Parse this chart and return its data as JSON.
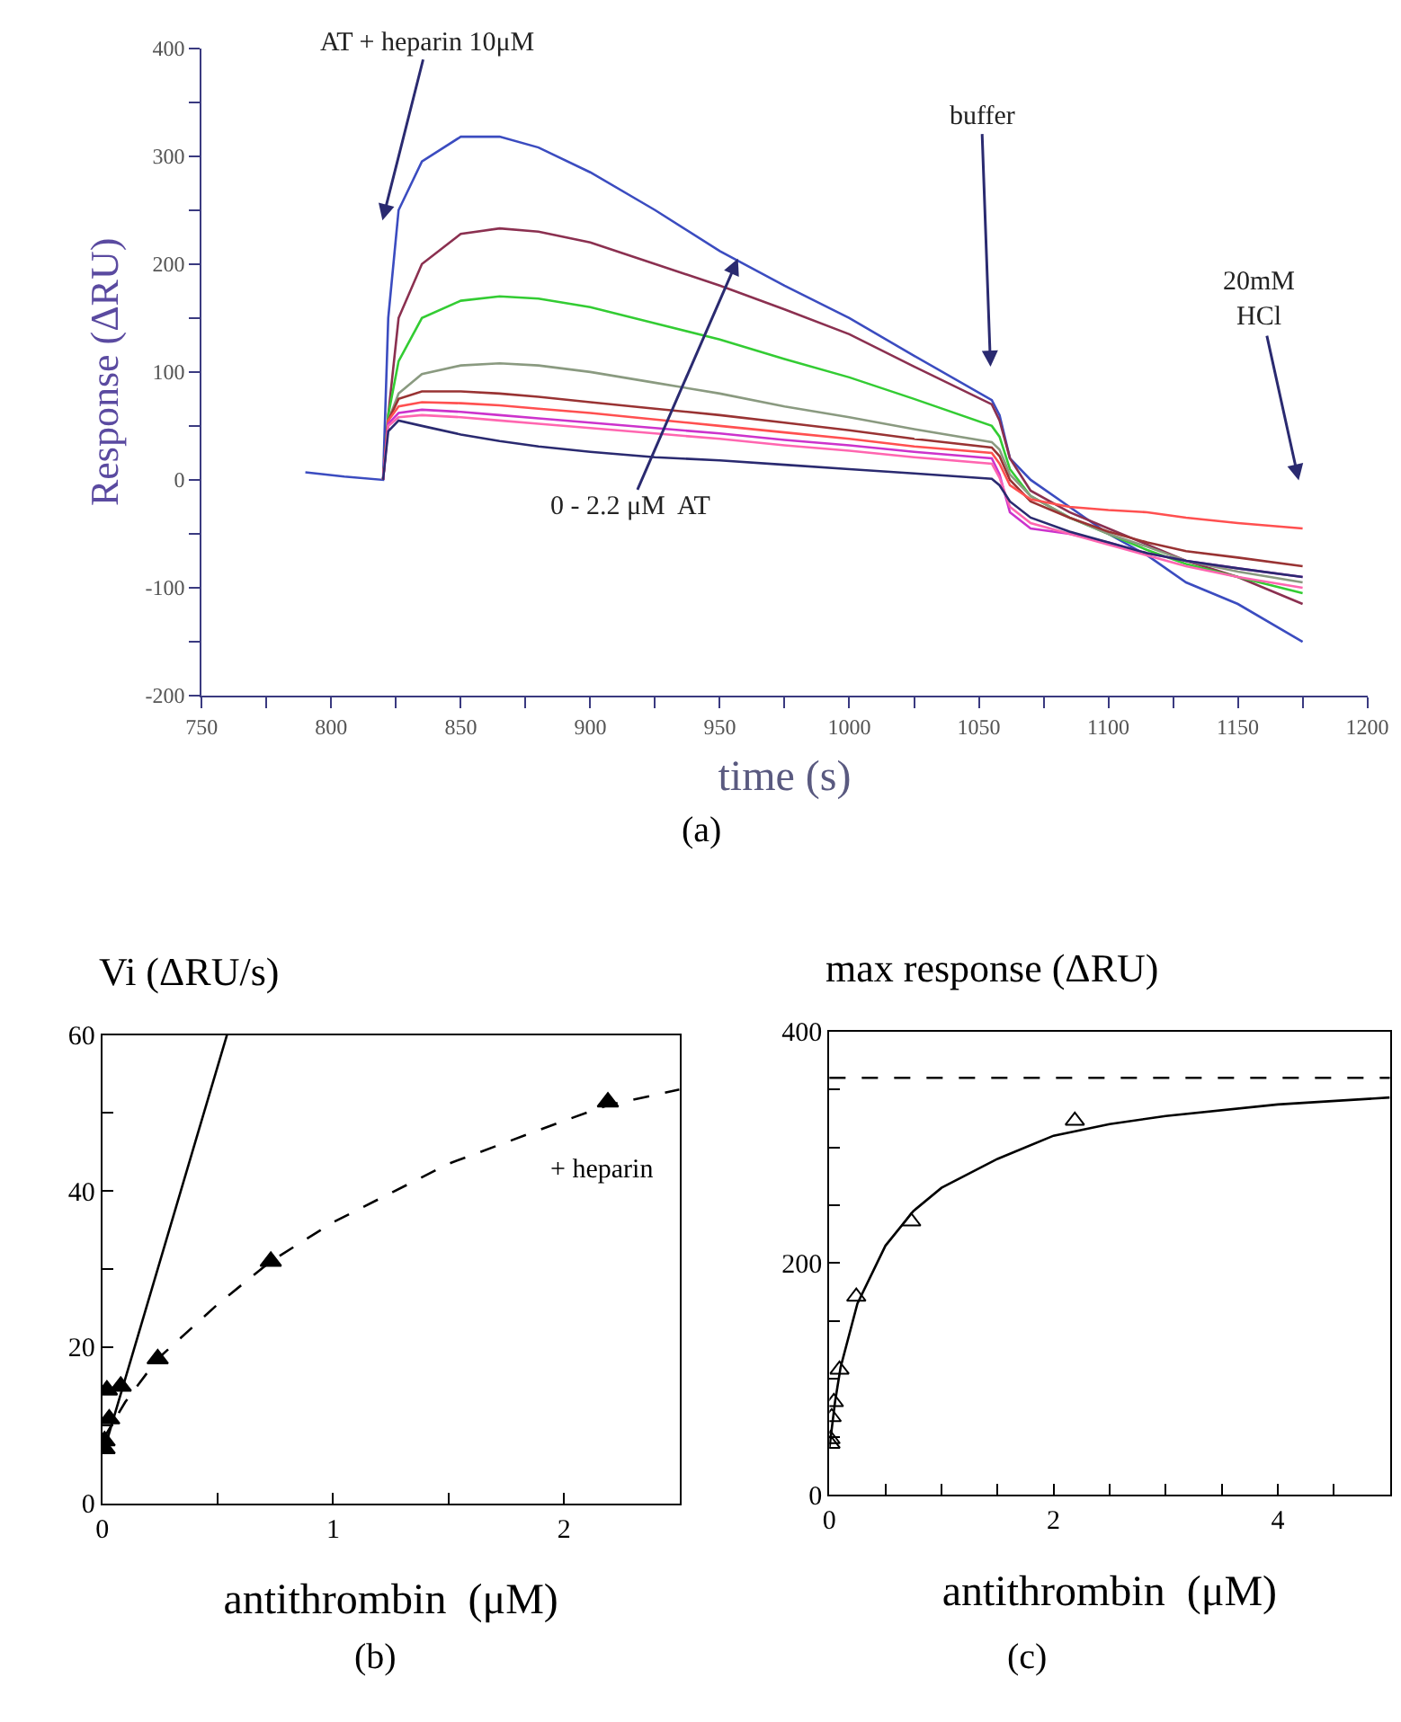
{
  "chart_data": [
    {
      "type": "line",
      "xlabel": "time (s)",
      "ylabel": "Response (ΔRU)",
      "x": [
        790,
        805,
        820,
        822,
        826,
        835,
        850,
        865,
        880,
        900,
        925,
        950,
        975,
        1000,
        1025,
        1055,
        1058,
        1062,
        1070,
        1085,
        1100,
        1115,
        1130,
        1150,
        1175
      ],
      "series": [
        {
          "color": "#3b4cc0",
          "values": [
            7,
            3,
            0,
            150,
            250,
            295,
            318,
            318,
            308,
            285,
            250,
            212,
            180,
            150,
            115,
            74,
            60,
            20,
            0,
            -25,
            -50,
            -70,
            -95,
            -115,
            -150
          ]
        },
        {
          "color": "#8b3050",
          "values": [
            null,
            null,
            0,
            60,
            150,
            200,
            228,
            233,
            230,
            220,
            200,
            180,
            158,
            135,
            105,
            70,
            55,
            20,
            -10,
            -30,
            -45,
            -60,
            -75,
            -90,
            -115
          ]
        },
        {
          "color": "#33cc33",
          "values": [
            null,
            null,
            0,
            60,
            110,
            150,
            166,
            170,
            168,
            160,
            145,
            130,
            112,
            95,
            75,
            50,
            40,
            10,
            -15,
            -35,
            -50,
            -65,
            -78,
            -90,
            -105
          ]
        },
        {
          "color": "#8a9a80",
          "values": [
            null,
            null,
            0,
            55,
            80,
            98,
            106,
            108,
            106,
            100,
            90,
            80,
            68,
            58,
            47,
            35,
            28,
            5,
            -15,
            -35,
            -50,
            -62,
            -75,
            -85,
            -95
          ]
        },
        {
          "color": "#993333",
          "values": [
            null,
            null,
            0,
            55,
            75,
            82,
            82,
            80,
            77,
            72,
            66,
            60,
            53,
            46,
            38,
            30,
            22,
            0,
            -20,
            -35,
            -48,
            -58,
            -66,
            -72,
            -80
          ]
        },
        {
          "color": "#ff5050",
          "values": [
            null,
            null,
            0,
            55,
            68,
            72,
            71,
            69,
            66,
            62,
            56,
            50,
            44,
            38,
            31,
            25,
            15,
            -5,
            -18,
            -25,
            -28,
            -30,
            -35,
            -40,
            -45
          ]
        },
        {
          "color": "#cc33cc",
          "values": [
            null,
            null,
            0,
            52,
            62,
            65,
            63,
            60,
            57,
            53,
            48,
            43,
            37,
            32,
            26,
            20,
            5,
            -30,
            -45,
            -50,
            -58,
            -68,
            -75,
            -82,
            -90
          ]
        },
        {
          "color": "#ff66b0",
          "values": [
            null,
            null,
            0,
            50,
            58,
            60,
            58,
            55,
            52,
            48,
            43,
            38,
            32,
            27,
            21,
            15,
            2,
            -25,
            -40,
            -50,
            -60,
            -70,
            -80,
            -90,
            -100
          ]
        },
        {
          "color": "#2a2a70",
          "values": [
            null,
            null,
            0,
            45,
            55,
            50,
            42,
            36,
            31,
            26,
            21,
            18,
            14,
            10,
            6,
            1,
            -5,
            -20,
            -35,
            -48,
            -58,
            -68,
            -75,
            -82,
            -90
          ]
        }
      ],
      "xlim": [
        750,
        1200
      ],
      "ylim": [
        -200,
        400
      ],
      "xticks": [
        750,
        {
          "value": 775,
          "label": null
        },
        800,
        {
          "value": 825,
          "label": null
        },
        850,
        {
          "value": 875,
          "label": null
        },
        900,
        {
          "value": 925,
          "label": null
        },
        950,
        {
          "value": 975,
          "label": null
        },
        1000,
        {
          "value": 1025,
          "label": null
        },
        1050,
        {
          "value": 1075,
          "label": null
        },
        1100,
        {
          "value": 1125,
          "label": null
        },
        1150,
        {
          "value": 1175,
          "label": null
        },
        1200
      ],
      "yticks": [
        -200,
        {
          "value": -150,
          "label": null
        },
        -100,
        {
          "value": -50,
          "label": null
        },
        0,
        {
          "value": 50,
          "label": null
        },
        100,
        {
          "value": 150,
          "label": null
        },
        200,
        {
          "value": 250,
          "label": null
        },
        300,
        {
          "value": 350,
          "label": null
        },
        400
      ],
      "annotations": [
        "AT + heparin 10μM",
        "buffer",
        "20mM\nHCl",
        {
          "text": "0 - 2.2 μM  AT",
          "x": 957,
          "y": 205
        },
        "(a)"
      ]
    },
    {
      "type": "scatter",
      "xlabel": "antithrombin  (μM)",
      "ylabel": "Vi (ΔRU/s)",
      "series": [
        {
          "type": "line",
          "line_style": "solid",
          "color": "#000000",
          "x": [
            0.01,
            0.54
          ],
          "values": [
            7,
            60
          ]
        },
        {
          "type": "line",
          "line_style": "dashed",
          "color": "#000000",
          "x": [
            0,
            0.1,
            0.24,
            0.5,
            0.73,
            1,
            1.5,
            2,
            2.19,
            2.5
          ],
          "values": [
            8,
            13,
            18.5,
            25.5,
            31,
            36,
            43.5,
            49,
            51,
            53
          ]
        },
        {
          "type": "scatter",
          "marker": "triangle",
          "color": "#000000",
          "x": [
            0.01,
            0.01,
            0.03,
            0.02,
            0.08,
            0.24,
            0.73,
            2.19
          ],
          "values": [
            7,
            8,
            10.8,
            14.5,
            15,
            18.5,
            31,
            51.4
          ]
        }
      ],
      "xlim": [
        0,
        2.5
      ],
      "ylim": [
        0,
        60
      ],
      "xticks": [
        0,
        {
          "value": 0.5,
          "label": null
        },
        1,
        {
          "value": 1.5,
          "label": null
        },
        2,
        {
          "value": 2.5,
          "label": null
        }
      ],
      "yticks": [
        0,
        {
          "value": 10,
          "label": null
        },
        20,
        {
          "value": 30,
          "label": null
        },
        40,
        {
          "value": 50,
          "label": null
        },
        60
      ],
      "annotations": [
        "+ heparin",
        "(b)"
      ]
    },
    {
      "type": "scatter",
      "xlabel": "antithrombin  (μM)",
      "ylabel": "max response (ΔRU)",
      "series": [
        {
          "type": "line",
          "line_style": "solid",
          "color": "#000000",
          "x": [
            0,
            0.05,
            0.1,
            0.25,
            0.5,
            0.75,
            1,
            1.5,
            2,
            2.5,
            3,
            4,
            5
          ],
          "values": [
            40,
            80,
            110,
            165,
            215,
            245,
            265,
            290,
            310,
            320,
            327,
            337,
            343
          ]
        },
        {
          "type": "scatter",
          "marker": "triangle-open",
          "color": "#000000",
          "x": [
            0.01,
            0.01,
            0.02,
            0.04,
            0.09,
            0.24,
            0.73,
            2.19
          ],
          "values": [
            44,
            48,
            67,
            80,
            108,
            171,
            236,
            323
          ]
        }
      ],
      "xlim": [
        0,
        5
      ],
      "ylim": [
        0,
        400
      ],
      "xticks": [
        0,
        {
          "value": 0.5,
          "label": null
        },
        {
          "value": 1,
          "label": null
        },
        {
          "value": 1.5,
          "label": null
        },
        2,
        {
          "value": 2.5,
          "label": null
        },
        {
          "value": 3,
          "label": null
        },
        {
          "value": 3.5,
          "label": null
        },
        4,
        {
          "value": 4.5,
          "label": null
        },
        {
          "value": 5,
          "label": null
        }
      ],
      "yticks": [
        0,
        {
          "value": 50,
          "label": null
        },
        {
          "value": 100,
          "label": null
        },
        {
          "value": 150,
          "label": null
        },
        200,
        {
          "value": 250,
          "label": null
        },
        {
          "value": 300,
          "label": null
        },
        {
          "value": 350,
          "label": null
        },
        400
      ],
      "ref_lines": [
        {
          "axis": "y",
          "value": 360,
          "line_style": "dashed",
          "color": "#000000"
        }
      ],
      "annotations": [
        "(c)"
      ]
    }
  ]
}
